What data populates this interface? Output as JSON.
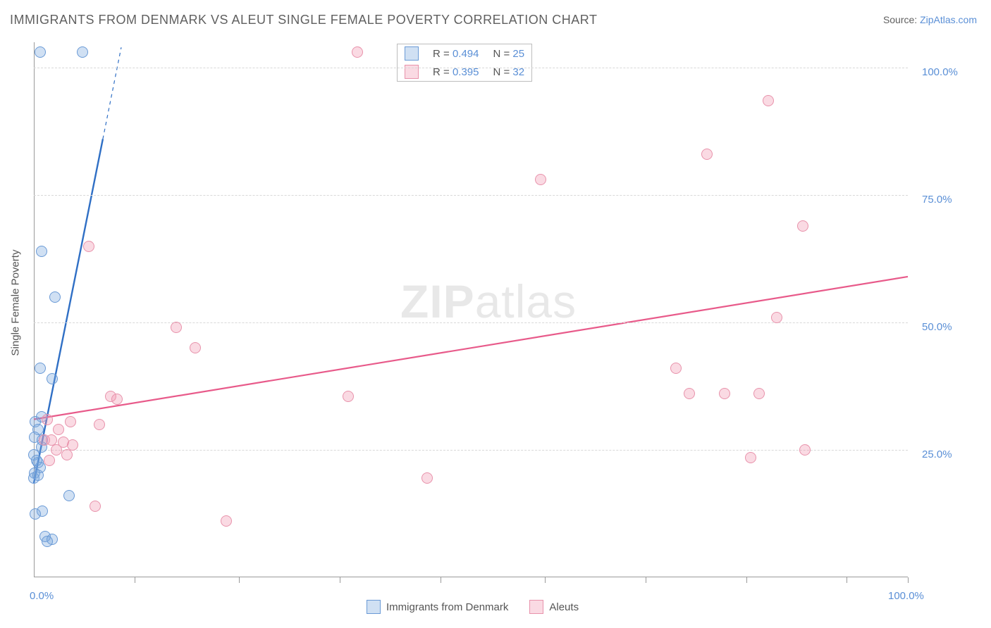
{
  "title": "IMMIGRANTS FROM DENMARK VS ALEUT SINGLE FEMALE POVERTY CORRELATION CHART",
  "source_label": "Source:",
  "source_value": "ZipAtlas.com",
  "ylabel": "Single Female Poverty",
  "watermark_bold": "ZIP",
  "watermark_rest": "atlas",
  "chart": {
    "type": "scatter-with-regression",
    "xlim": [
      0,
      100
    ],
    "ylim": [
      0,
      105
    ],
    "x_ticks_minor": [
      11.5,
      23.5,
      35,
      46.5,
      58.5,
      70,
      81.5,
      93,
      100
    ],
    "x_tick_labels": [
      {
        "x": 0,
        "label": "0.0%"
      },
      {
        "x": 100,
        "label": "100.0%"
      }
    ],
    "y_gridlines": [
      25,
      50,
      75,
      100
    ],
    "y_tick_labels": [
      {
        "y": 25,
        "label": "25.0%"
      },
      {
        "y": 50,
        "label": "50.0%"
      },
      {
        "y": 75,
        "label": "75.0%"
      },
      {
        "y": 100,
        "label": "100.0%"
      }
    ],
    "grid_color": "#d8d8d8",
    "axis_color": "#9a9a9a",
    "background_color": "#ffffff",
    "marker_radius": 8,
    "marker_border_width": 1.2,
    "series": [
      {
        "key": "denmark",
        "label": "Immigrants from Denmark",
        "fill": "rgba(120,165,220,0.35)",
        "stroke": "#6a9ad6",
        "line_color": "#2f6fc5",
        "line_width": 2.4,
        "R": "0.494",
        "N": "25",
        "regression": {
          "x1": 0,
          "y1": 18.5,
          "x2": 10,
          "y2": 104,
          "dash_extend": true
        },
        "points": [
          {
            "x": 0.7,
            "y": 103
          },
          {
            "x": 5.6,
            "y": 103
          },
          {
            "x": 0.9,
            "y": 64
          },
          {
            "x": 2.4,
            "y": 55
          },
          {
            "x": 0.7,
            "y": 41
          },
          {
            "x": 2.1,
            "y": 39
          },
          {
            "x": 0.9,
            "y": 31.5
          },
          {
            "x": 0.2,
            "y": 30.5
          },
          {
            "x": 0.5,
            "y": 29
          },
          {
            "x": 0.1,
            "y": 27.5
          },
          {
            "x": 1.0,
            "y": 27
          },
          {
            "x": 0.9,
            "y": 25.5
          },
          {
            "x": 0.0,
            "y": 24
          },
          {
            "x": 0.5,
            "y": 22.5
          },
          {
            "x": 0.7,
            "y": 21.5
          },
          {
            "x": 0.1,
            "y": 20.5
          },
          {
            "x": 0.0,
            "y": 19.5
          },
          {
            "x": 4.0,
            "y": 16
          },
          {
            "x": 1.0,
            "y": 13
          },
          {
            "x": 0.2,
            "y": 12.5
          },
          {
            "x": 1.3,
            "y": 8
          },
          {
            "x": 2.1,
            "y": 7.5
          },
          {
            "x": 1.5,
            "y": 7
          },
          {
            "x": 0.5,
            "y": 20
          },
          {
            "x": 0.3,
            "y": 23
          }
        ]
      },
      {
        "key": "aleuts",
        "label": "Aleuts",
        "fill": "rgba(240,150,175,0.35)",
        "stroke": "#e892ab",
        "line_color": "#e85a8a",
        "line_width": 2.2,
        "R": "0.395",
        "N": "32",
        "regression": {
          "x1": 0,
          "y1": 31,
          "x2": 100,
          "y2": 59,
          "dash_extend": false
        },
        "points": [
          {
            "x": 37,
            "y": 103
          },
          {
            "x": 84,
            "y": 93.5
          },
          {
            "x": 77,
            "y": 83
          },
          {
            "x": 58,
            "y": 78
          },
          {
            "x": 88,
            "y": 69
          },
          {
            "x": 6.3,
            "y": 65
          },
          {
            "x": 85,
            "y": 51
          },
          {
            "x": 16.3,
            "y": 49
          },
          {
            "x": 18.5,
            "y": 45
          },
          {
            "x": 73.5,
            "y": 41
          },
          {
            "x": 75,
            "y": 36
          },
          {
            "x": 79,
            "y": 36
          },
          {
            "x": 83,
            "y": 36
          },
          {
            "x": 36,
            "y": 35.5
          },
          {
            "x": 8.8,
            "y": 35.5
          },
          {
            "x": 9.5,
            "y": 35
          },
          {
            "x": 1.5,
            "y": 31
          },
          {
            "x": 4.2,
            "y": 30.5
          },
          {
            "x": 7.5,
            "y": 30
          },
          {
            "x": 2.8,
            "y": 29
          },
          {
            "x": 1.2,
            "y": 27
          },
          {
            "x": 2.0,
            "y": 27
          },
          {
            "x": 3.4,
            "y": 26.5
          },
          {
            "x": 4.4,
            "y": 26
          },
          {
            "x": 88.2,
            "y": 25
          },
          {
            "x": 82,
            "y": 23.5
          },
          {
            "x": 45,
            "y": 19.5
          },
          {
            "x": 7.0,
            "y": 14
          },
          {
            "x": 22,
            "y": 11
          },
          {
            "x": 2.6,
            "y": 25
          },
          {
            "x": 3.8,
            "y": 24
          },
          {
            "x": 1.8,
            "y": 23
          }
        ]
      }
    ]
  },
  "legend_top": {
    "R_label": "R =",
    "N_label": "N ="
  },
  "colors": {
    "text_gray": "#606060",
    "text_blue": "#5a8fd6"
  }
}
